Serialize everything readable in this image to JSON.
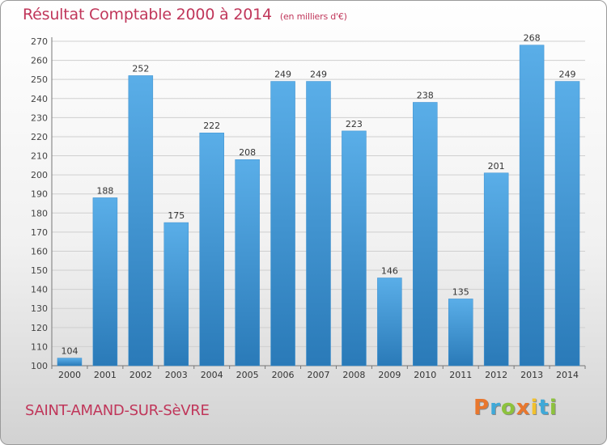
{
  "page": {
    "title": "Résultat Comptable 2000 à 2014",
    "unit_note": "(en milliers d'€)",
    "commune": "SAINT-AMAND-SUR-SèVRE",
    "logo_text": "Proxiti"
  },
  "colors": {
    "accent_text": "#c0365a",
    "bar_light": "#5aaee8",
    "bar_dark": "#2a7ab8",
    "grid": "#cfcfcf",
    "logo_letters": [
      "#e8772e",
      "#3fa9d8",
      "#8dc23d",
      "#e8772e",
      "#f2c12e",
      "#3fa9d8",
      "#8dc23d"
    ]
  },
  "chart_data": {
    "type": "bar",
    "title": "Résultat Comptable 2000 à 2014",
    "subtitle": "(en milliers d'€)",
    "xlabel": "",
    "ylabel": "",
    "categories": [
      "2000",
      "2001",
      "2002",
      "2003",
      "2004",
      "2005",
      "2006",
      "2007",
      "2008",
      "2009",
      "2010",
      "2011",
      "2012",
      "2013",
      "2014"
    ],
    "values": [
      104,
      188,
      252,
      175,
      222,
      208,
      249,
      249,
      223,
      146,
      238,
      135,
      201,
      268,
      249
    ],
    "ylim": [
      100,
      270
    ],
    "yticks": [
      100,
      110,
      120,
      130,
      140,
      150,
      160,
      170,
      180,
      190,
      200,
      210,
      220,
      230,
      240,
      250,
      260,
      270
    ],
    "grid": true,
    "legend": "none"
  }
}
